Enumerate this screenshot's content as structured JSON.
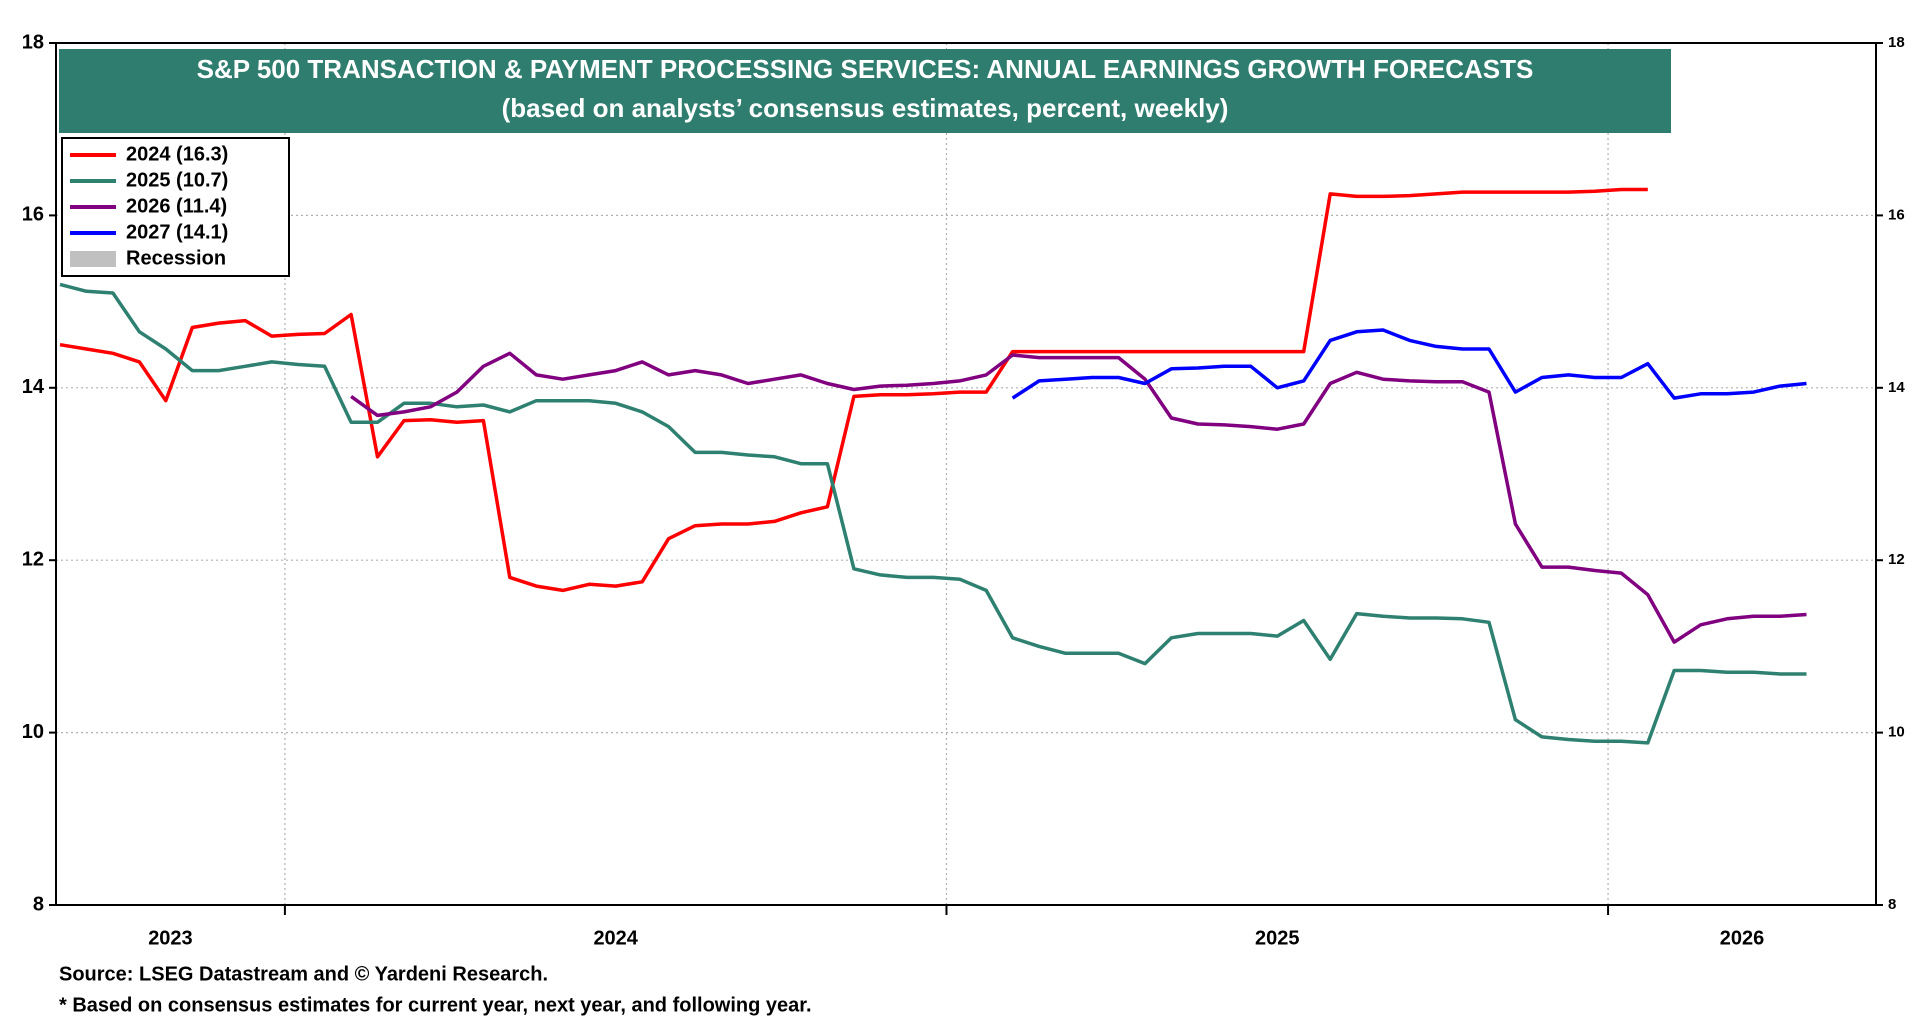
{
  "chart_data": {
    "type": "line",
    "title": "S&P 500 TRANSACTION & PAYMENT PROCESSING SERVICES: ANNUAL EARNINGS GROWTH FORECASTS",
    "subtitle": "(based on analysts’ consensus estimates, percent, weekly)",
    "source": "Source: LSEG Datastream and © Yardeni Research.",
    "footnote": "* Based on consensus estimates for current year, next year, and following year.",
    "title_color": "#2e7d6f",
    "x": [
      2023.66,
      2023.7,
      2023.74,
      2023.78,
      2023.82,
      2023.86,
      2023.9,
      2023.94,
      2023.98,
      2024.02,
      2024.06,
      2024.1,
      2024.14,
      2024.18,
      2024.22,
      2024.26,
      2024.3,
      2024.34,
      2024.38,
      2024.42,
      2024.46,
      2024.5,
      2024.54,
      2024.58,
      2024.62,
      2024.66,
      2024.7,
      2024.74,
      2024.78,
      2024.82,
      2024.86,
      2024.9,
      2024.94,
      2024.98,
      2025.02,
      2025.06,
      2025.1,
      2025.14,
      2025.18,
      2025.22,
      2025.26,
      2025.3,
      2025.34,
      2025.38,
      2025.42,
      2025.46,
      2025.5,
      2025.54,
      2025.58,
      2025.62,
      2025.66,
      2025.7,
      2025.74,
      2025.78,
      2025.82,
      2025.86,
      2025.9,
      2025.94,
      2025.98,
      2026.02,
      2026.06,
      2026.1,
      2026.14,
      2026.18,
      2026.22,
      2026.26,
      2026.3
    ],
    "series": [
      {
        "name": "2024 (16.3)",
        "color": "#ff0000",
        "values": [
          14.5,
          14.45,
          14.4,
          14.3,
          13.85,
          14.7,
          14.75,
          14.78,
          14.6,
          14.62,
          14.63,
          14.85,
          13.2,
          13.62,
          13.63,
          13.6,
          13.62,
          11.8,
          11.7,
          11.65,
          11.72,
          11.7,
          11.75,
          12.25,
          12.4,
          12.42,
          12.42,
          12.45,
          12.55,
          12.62,
          13.9,
          13.92,
          13.92,
          13.93,
          13.95,
          13.95,
          14.42,
          14.42,
          14.42,
          14.42,
          14.42,
          14.42,
          14.42,
          14.42,
          14.42,
          14.42,
          14.42,
          14.42,
          16.25,
          16.22,
          16.22,
          16.23,
          16.25,
          16.27,
          16.27,
          16.27,
          16.27,
          16.27,
          16.28,
          16.3,
          16.3,
          null,
          null,
          null,
          null,
          null,
          null
        ]
      },
      {
        "name": "2025 (10.7)",
        "color": "#2e8070",
        "values": [
          15.2,
          15.12,
          15.1,
          14.65,
          14.45,
          14.2,
          14.2,
          14.25,
          14.3,
          14.27,
          14.25,
          13.6,
          13.6,
          13.82,
          13.82,
          13.78,
          13.8,
          13.72,
          13.85,
          13.85,
          13.85,
          13.82,
          13.72,
          13.55,
          13.25,
          13.25,
          13.22,
          13.2,
          13.12,
          13.12,
          11.9,
          11.83,
          11.8,
          11.8,
          11.78,
          11.65,
          11.1,
          11.0,
          10.92,
          10.92,
          10.92,
          10.8,
          11.1,
          11.15,
          11.15,
          11.15,
          11.12,
          11.3,
          10.85,
          11.38,
          11.35,
          11.33,
          11.33,
          11.32,
          11.28,
          10.15,
          9.95,
          9.92,
          9.9,
          9.9,
          9.88,
          10.72,
          10.72,
          10.7,
          10.7,
          10.68,
          10.68
        ]
      },
      {
        "name": "2026 (11.4)",
        "color": "#800080",
        "values": [
          null,
          null,
          null,
          null,
          null,
          null,
          null,
          null,
          null,
          null,
          null,
          13.9,
          13.68,
          13.72,
          13.78,
          13.95,
          14.25,
          14.4,
          14.15,
          14.1,
          14.15,
          14.2,
          14.3,
          14.15,
          14.2,
          14.15,
          14.05,
          14.1,
          14.15,
          14.05,
          13.98,
          14.02,
          14.03,
          14.05,
          14.08,
          14.15,
          14.38,
          14.35,
          14.35,
          14.35,
          14.35,
          14.1,
          13.65,
          13.58,
          13.57,
          13.55,
          13.52,
          13.58,
          14.05,
          14.18,
          14.1,
          14.08,
          14.07,
          14.07,
          13.95,
          12.42,
          11.92,
          11.92,
          11.88,
          11.85,
          11.6,
          11.05,
          11.25,
          11.32,
          11.35,
          11.35,
          11.37
        ]
      },
      {
        "name": "2027 (14.1)",
        "color": "#0000ff",
        "values": [
          null,
          null,
          null,
          null,
          null,
          null,
          null,
          null,
          null,
          null,
          null,
          null,
          null,
          null,
          null,
          null,
          null,
          null,
          null,
          null,
          null,
          null,
          null,
          null,
          null,
          null,
          null,
          null,
          null,
          null,
          null,
          null,
          null,
          null,
          null,
          null,
          13.88,
          14.08,
          14.1,
          14.12,
          14.12,
          14.05,
          14.22,
          14.23,
          14.25,
          14.25,
          14.0,
          14.08,
          14.55,
          14.65,
          14.67,
          14.55,
          14.48,
          14.45,
          14.45,
          13.95,
          14.12,
          14.15,
          14.12,
          14.12,
          14.28,
          13.88,
          13.93,
          13.93,
          13.95,
          14.02,
          14.05
        ]
      }
    ],
    "recession_legend": {
      "label": "Recession",
      "color": "#c0c0c0"
    },
    "xlim": [
      2023.654,
      2026.405
    ],
    "xticks": [
      2023,
      2024,
      2025,
      2026
    ],
    "ylim": [
      8,
      18
    ],
    "yticks": [
      8,
      10,
      12,
      14,
      16,
      18
    ],
    "y2lim": [
      8,
      18
    ],
    "y2ticks": [
      8,
      10,
      12,
      14,
      16,
      18
    ],
    "grid": true,
    "legend": "top-left"
  }
}
